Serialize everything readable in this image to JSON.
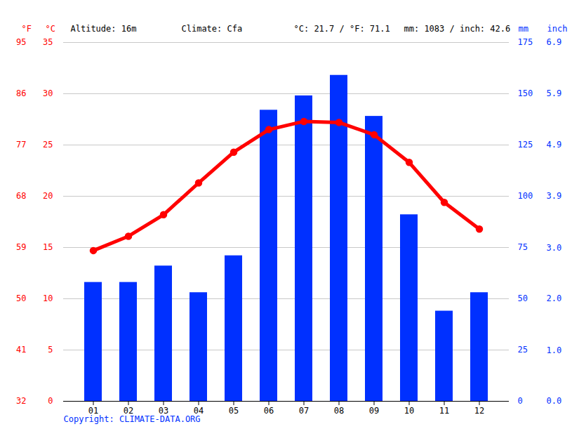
{
  "chart_data": {
    "type": "bar",
    "annotations": [
      "Altitude: 16m",
      "Climate: Cfa",
      "°C: 21.7 / °F: 71.1",
      "mm: 1083 / inch: 42.6"
    ],
    "caption": "Copyright: CLIMATE-DATA.ORG",
    "categories": [
      "01",
      "02",
      "03",
      "04",
      "05",
      "06",
      "07",
      "08",
      "09",
      "10",
      "11",
      "12"
    ],
    "series": [
      {
        "type": "bar",
        "axis": "y2",
        "color": "#0030ff",
        "values": [
          58,
          58,
          66,
          53,
          71,
          142,
          149,
          159,
          139,
          91,
          44,
          53
        ]
      },
      {
        "type": "line",
        "color": "#ff0000",
        "marker": "circle",
        "values": [
          14.7,
          16.1,
          18.2,
          21.3,
          24.3,
          26.5,
          27.3,
          27.2,
          26.0,
          23.3,
          19.4,
          16.8
        ]
      }
    ],
    "ylabel": "°C",
    "ylim": [
      0,
      35
    ],
    "yticks": [
      0,
      5,
      10,
      15,
      20,
      25,
      30,
      35
    ],
    "y2label": "mm",
    "y2lim": [
      0,
      175
    ],
    "y2ticks": [
      0,
      25,
      50,
      75,
      100,
      125,
      150,
      175
    ],
    "y3label": "°F",
    "y3lim": [
      32,
      95
    ],
    "y3ticks": [
      32,
      41,
      50,
      59,
      68,
      77,
      86,
      95
    ],
    "y4label": "inch",
    "y4lim": [
      0,
      6.89
    ],
    "y4ticks": [
      {
        "value": 0,
        "label": "0.0"
      },
      {
        "value": 0.98,
        "label": "1.0"
      },
      {
        "value": 1.97,
        "label": "2.0"
      },
      {
        "value": 2.95,
        "label": "3.0"
      },
      {
        "value": 3.94,
        "label": "3.9"
      },
      {
        "value": 4.92,
        "label": "4.9"
      },
      {
        "value": 5.91,
        "label": "5.9"
      },
      {
        "value": 6.89,
        "label": "6.9"
      }
    ],
    "grid": true
  }
}
